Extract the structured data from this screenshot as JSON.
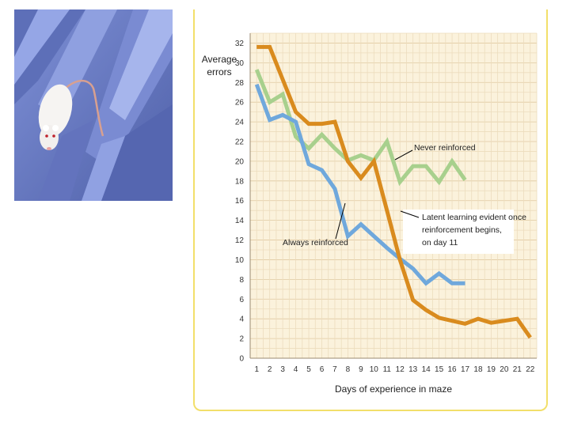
{
  "photo": {
    "icon": "rat-in-maze-photo"
  },
  "chart_data": {
    "type": "line",
    "title": "",
    "ylabel_line1": "Average",
    "ylabel_line2": "errors",
    "xlabel": "Days of experience in maze",
    "ylim": [
      0,
      33
    ],
    "yticks": [
      0,
      2,
      4,
      6,
      8,
      10,
      12,
      14,
      16,
      18,
      20,
      22,
      24,
      26,
      28,
      30,
      32
    ],
    "xticks": [
      1,
      2,
      3,
      4,
      5,
      6,
      7,
      8,
      9,
      10,
      11,
      12,
      13,
      14,
      15,
      16,
      17,
      18,
      19,
      20,
      21,
      22
    ],
    "grid": true,
    "series": [
      {
        "name": "Never reinforced",
        "color": "#a8d08d",
        "x": [
          1,
          2,
          3,
          4,
          5,
          6,
          7,
          8,
          9,
          10,
          11,
          12,
          13,
          14,
          15,
          16,
          17
        ],
        "values": [
          29.3,
          26.0,
          26.8,
          22.5,
          21.3,
          22.7,
          21.3,
          20.1,
          20.6,
          20.1,
          22.0,
          17.9,
          19.5,
          19.5,
          17.9,
          20.0,
          18.1
        ]
      },
      {
        "name": "Always reinforced",
        "color": "#6fa8dc",
        "x": [
          1,
          2,
          3,
          4,
          5,
          6,
          7,
          8,
          9,
          10,
          11,
          12,
          13,
          14,
          15,
          16,
          17
        ],
        "values": [
          27.8,
          24.2,
          24.7,
          24.0,
          19.7,
          19.1,
          17.2,
          12.4,
          13.6,
          12.4,
          11.2,
          10.1,
          9.1,
          7.6,
          8.6,
          7.6,
          7.6
        ]
      },
      {
        "name": "Latent learning (reinforced from day 11)",
        "color": "#d98b1e",
        "x": [
          1,
          2,
          3,
          4,
          5,
          6,
          7,
          8,
          9,
          10,
          11,
          12,
          13,
          14,
          15,
          16,
          17,
          18,
          19,
          20,
          21,
          22
        ],
        "values": [
          31.6,
          31.6,
          28.3,
          25.0,
          23.8,
          23.8,
          24.0,
          20.0,
          18.3,
          20.0,
          15.0,
          10.0,
          5.9,
          4.9,
          4.1,
          3.8,
          3.5,
          4.0,
          3.6,
          3.8,
          4.0,
          2.1
        ]
      }
    ],
    "annotations": {
      "never": "Never reinforced",
      "always": "Always reinforced",
      "latent_line1": "Latent learning evident once",
      "latent_line2": "reinforcement begins,",
      "latent_line3": "on day 11"
    }
  }
}
